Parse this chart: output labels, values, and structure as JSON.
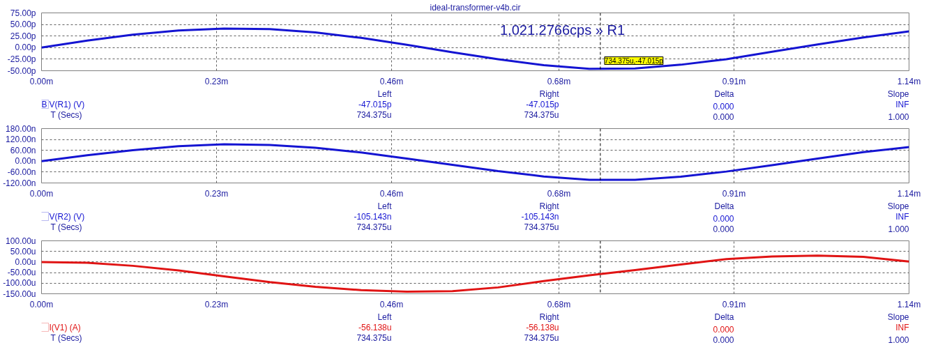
{
  "chart_data": [
    {
      "type": "line",
      "title": "ideal-transformer-v4b.cir",
      "xlabel": "T (Secs)",
      "x": [
        0,
        0.06,
        0.12,
        0.18,
        0.24,
        0.3,
        0.36,
        0.42,
        0.48,
        0.54,
        0.6,
        0.66,
        0.72,
        0.78,
        0.84,
        0.9,
        0.96,
        1.02,
        1.08,
        1.14
      ],
      "series": [
        {
          "name": "V(R1) (V)",
          "color": "#1414d2",
          "values": [
            0,
            15,
            28,
            37,
            41,
            40,
            33,
            21,
            6,
            -10,
            -25,
            -38,
            -46,
            -45,
            -37,
            -25,
            -9,
            7,
            22,
            35
          ]
        }
      ],
      "xlim": [
        0,
        1.14
      ],
      "xticks": [
        {
          "value": 0,
          "label": "0.00m"
        },
        {
          "value": 0.23,
          "label": "0.23m"
        },
        {
          "value": 0.46,
          "label": "0.46m"
        },
        {
          "value": 0.68,
          "label": "0.68m"
        },
        {
          "value": 0.91,
          "label": "0.91m"
        },
        {
          "value": 1.14,
          "label": "1.14m"
        }
      ],
      "ylim": [
        -50,
        75
      ],
      "yticks": [
        {
          "value": -50,
          "label": "-50.00p"
        },
        {
          "value": -25,
          "label": "-25.00p"
        },
        {
          "value": 0,
          "label": "0.00p"
        },
        {
          "value": 25,
          "label": "25.00p"
        },
        {
          "value": 50,
          "label": "50.00p"
        },
        {
          "value": 75,
          "label": "75.00p"
        }
      ],
      "grid": true,
      "legend": "bottom left",
      "line_style": "solid",
      "marker": "none",
      "ref_lines": [
        {
          "axis": "x",
          "value": 0.734375,
          "color": "#000000",
          "line_style": "dashed"
        }
      ],
      "annotations": [
        "1,021.2766cps » R1",
        "B",
        {
          "text": "734.375u,-47.015p",
          "x": 0.734375,
          "y": -47.015
        },
        "Left",
        "Right",
        "Delta",
        "Slope",
        "-47.015p",
        "-47.015p",
        "0.000",
        "INF",
        "734.375u",
        "734.375u",
        "0.000",
        "1.000"
      ]
    },
    {
      "type": "line",
      "xlabel": "T (Secs)",
      "x": [
        0,
        0.06,
        0.12,
        0.18,
        0.24,
        0.3,
        0.36,
        0.42,
        0.48,
        0.54,
        0.6,
        0.66,
        0.72,
        0.78,
        0.84,
        0.9,
        0.96,
        1.02,
        1.08,
        1.14
      ],
      "series": [
        {
          "name": "V(R2) (V)",
          "color": "#1414d2",
          "values": [
            0,
            33,
            61,
            83,
            93,
            90,
            74,
            48,
            15,
            -20,
            -55,
            -84,
            -103,
            -103,
            -85,
            -57,
            -22,
            15,
            50,
            78
          ]
        }
      ],
      "xlim": [
        0,
        1.14
      ],
      "xticks": [
        {
          "value": 0,
          "label": "0.00m"
        },
        {
          "value": 0.23,
          "label": "0.23m"
        },
        {
          "value": 0.46,
          "label": "0.46m"
        },
        {
          "value": 0.68,
          "label": "0.68m"
        },
        {
          "value": 0.91,
          "label": "0.91m"
        },
        {
          "value": 1.14,
          "label": "1.14m"
        }
      ],
      "ylim": [
        -120,
        180
      ],
      "yticks": [
        {
          "value": -120,
          "label": "-120.00n"
        },
        {
          "value": -60,
          "label": "-60.00n"
        },
        {
          "value": 0,
          "label": "0.00n"
        },
        {
          "value": 60,
          "label": "60.00n"
        },
        {
          "value": 120,
          "label": "120.00n"
        },
        {
          "value": 180,
          "label": "180.00n"
        }
      ],
      "grid": true,
      "legend": "bottom left",
      "line_style": "solid",
      "marker": "none",
      "ref_lines": [
        {
          "axis": "x",
          "value": 0.734375,
          "color": "#000000",
          "line_style": "dashed"
        }
      ],
      "annotations": [
        "Left",
        "Right",
        "Delta",
        "Slope",
        "-105.143n",
        "-105.143n",
        "0.000",
        "INF",
        "734.375u",
        "734.375u",
        "0.000",
        "1.000"
      ]
    },
    {
      "type": "line",
      "xlabel": "T (Secs)",
      "x": [
        0,
        0.06,
        0.12,
        0.18,
        0.24,
        0.3,
        0.36,
        0.42,
        0.48,
        0.54,
        0.6,
        0.66,
        0.72,
        0.78,
        0.84,
        0.9,
        0.96,
        1.02,
        1.08,
        1.14
      ],
      "series": [
        {
          "name": "I(V1) (A)",
          "color": "#e01414",
          "values": [
            0,
            -4,
            -18,
            -40,
            -68,
            -95,
            -117,
            -133,
            -140,
            -138,
            -120,
            -90,
            -63,
            -38,
            -12,
            14,
            26,
            30,
            24,
            2
          ]
        }
      ],
      "xlim": [
        0,
        1.14
      ],
      "xticks": [
        {
          "value": 0,
          "label": "0.00m"
        },
        {
          "value": 0.23,
          "label": "0.23m"
        },
        {
          "value": 0.46,
          "label": "0.46m"
        },
        {
          "value": 0.68,
          "label": "0.68m"
        },
        {
          "value": 0.91,
          "label": "0.91m"
        },
        {
          "value": 1.14,
          "label": "1.14m"
        }
      ],
      "ylim": [
        -150,
        100
      ],
      "yticks": [
        {
          "value": -150,
          "label": "-150.00u"
        },
        {
          "value": -100,
          "label": "-100.00u"
        },
        {
          "value": -50,
          "label": "-50.00u"
        },
        {
          "value": 0,
          "label": "0.00u"
        },
        {
          "value": 50,
          "label": "50.00u"
        },
        {
          "value": 100,
          "label": "100.00u"
        }
      ],
      "grid": true,
      "legend": "bottom left",
      "line_style": "solid",
      "marker": "none",
      "ref_lines": [
        {
          "axis": "x",
          "value": 0.734375,
          "color": "#000000",
          "line_style": "dashed"
        }
      ],
      "annotations": [
        "Left",
        "Right",
        "Delta",
        "Slope",
        "-56.138u",
        "-56.138u",
        "0.000",
        "INF",
        "734.375u",
        "734.375u",
        "0.000",
        "1.000"
      ]
    }
  ]
}
